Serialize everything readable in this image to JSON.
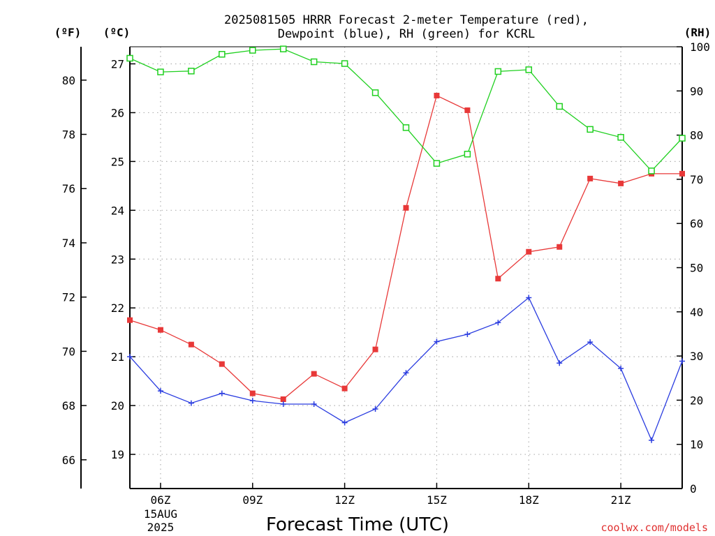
{
  "chart_data": {
    "type": "line",
    "title_line1": "2025081505 HRRR Forecast 2-meter Temperature (red),",
    "title_line2": "Dewpoint (blue), RH (green) for KCRL",
    "xlabel": "Forecast Time (UTC)",
    "unit_left_outer": "(ºF)",
    "unit_left_inner": "(ºC)",
    "unit_right": "(RH)",
    "credit": "coolwx.com/models",
    "x": [
      "05Z",
      "06Z",
      "07Z",
      "08Z",
      "09Z",
      "10Z",
      "11Z",
      "12Z",
      "13Z",
      "14Z",
      "15Z",
      "16Z",
      "17Z",
      "18Z",
      "19Z",
      "20Z",
      "21Z",
      "22Z",
      "23Z"
    ],
    "x_ticks": [
      {
        "index": 1,
        "label": "06Z",
        "label2": "15AUG",
        "label3": "2025"
      },
      {
        "index": 4,
        "label": "09Z"
      },
      {
        "index": 7,
        "label": "12Z"
      },
      {
        "index": 10,
        "label": "15Z"
      },
      {
        "index": 13,
        "label": "18Z"
      },
      {
        "index": 16,
        "label": "21Z"
      }
    ],
    "celsius_ylim": [
      18.3,
      27.35
    ],
    "celsius_ticks": [
      "19",
      "20",
      "21",
      "22",
      "23",
      "24",
      "25",
      "26",
      "27"
    ],
    "fahrenheit_ticks": [
      "66",
      "68",
      "70",
      "72",
      "74",
      "76",
      "78",
      "80"
    ],
    "rh_ylim": [
      0,
      100
    ],
    "rh_ticks": [
      "0",
      "10",
      "20",
      "30",
      "40",
      "50",
      "60",
      "70",
      "80",
      "90",
      "100"
    ],
    "grid": true,
    "series": [
      {
        "axis": "celsius",
        "color": "#e83838",
        "marker": "filled-square",
        "values": [
          21.75,
          21.55,
          21.25,
          20.85,
          20.25,
          20.13,
          20.65,
          20.35,
          21.15,
          24.05,
          26.35,
          26.05,
          22.6,
          23.15,
          23.25,
          24.65,
          24.55,
          24.75,
          24.75
        ]
      },
      {
        "axis": "celsius",
        "color": "#2a3ce0",
        "marker": "plus",
        "values": [
          21.0,
          20.3,
          20.05,
          20.25,
          20.1,
          20.03,
          20.03,
          19.65,
          19.93,
          20.67,
          21.31,
          21.46,
          21.7,
          22.21,
          20.87,
          21.3,
          20.76,
          19.29,
          20.91
        ]
      },
      {
        "axis": "rh",
        "color": "#20d020",
        "marker": "open-square",
        "values": [
          97.4,
          94.3,
          94.5,
          98.3,
          99.2,
          99.5,
          96.6,
          96.2,
          89.6,
          81.7,
          73.6,
          75.7,
          94.4,
          94.8,
          86.5,
          81.3,
          79.5,
          71.9,
          79.3
        ]
      }
    ]
  }
}
